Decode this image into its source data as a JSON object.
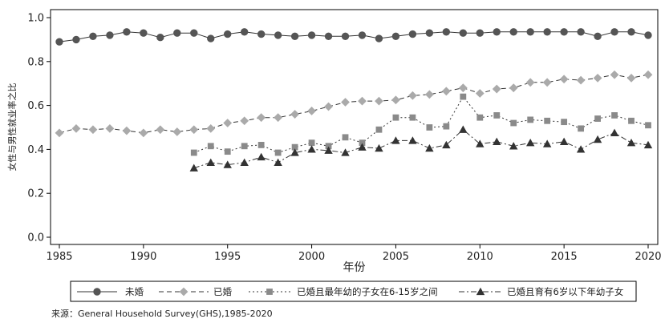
{
  "chart_data": {
    "type": "line",
    "title": "",
    "xlabel": "年份",
    "ylabel": "女性与男性就业率之比",
    "xlim": [
      1985,
      2020
    ],
    "ylim": [
      0,
      1
    ],
    "x_ticks": [
      1985,
      1990,
      1995,
      2000,
      2005,
      2010,
      2015,
      2020
    ],
    "y_ticks": [
      "0.0",
      "0.2",
      "0.4",
      "0.6",
      "0.8",
      "1.0"
    ],
    "grid": false,
    "legend_position": "bottom",
    "series": [
      {
        "name": "未婚",
        "color": "#555555",
        "marker": "circle",
        "line_style": "solid",
        "x": [
          1985,
          1986,
          1987,
          1988,
          1989,
          1990,
          1991,
          1992,
          1993,
          1994,
          1995,
          1996,
          1997,
          1998,
          1999,
          2000,
          2001,
          2002,
          2003,
          2004,
          2005,
          2006,
          2007,
          2008,
          2009,
          2010,
          2011,
          2012,
          2013,
          2014,
          2015,
          2016,
          2017,
          2018,
          2019,
          2020
        ],
        "y": [
          0.89,
          0.9,
          0.915,
          0.92,
          0.935,
          0.93,
          0.91,
          0.93,
          0.93,
          0.905,
          0.925,
          0.935,
          0.925,
          0.92,
          0.915,
          0.92,
          0.915,
          0.915,
          0.92,
          0.905,
          0.915,
          0.925,
          0.93,
          0.935,
          0.93,
          0.93,
          0.935,
          0.935,
          0.935,
          0.935,
          0.935,
          0.935,
          0.915,
          0.935,
          0.935,
          0.92
        ]
      },
      {
        "name": "已婚",
        "color": "#aaaaaa",
        "marker": "diamond",
        "line_style": "dashed",
        "x": [
          1985,
          1986,
          1987,
          1988,
          1989,
          1990,
          1991,
          1992,
          1993,
          1994,
          1995,
          1996,
          1997,
          1998,
          1999,
          2000,
          2001,
          2002,
          2003,
          2004,
          2005,
          2006,
          2007,
          2008,
          2009,
          2010,
          2011,
          2012,
          2013,
          2014,
          2015,
          2016,
          2017,
          2018,
          2019,
          2020
        ],
        "y": [
          0.475,
          0.495,
          0.49,
          0.495,
          0.485,
          0.475,
          0.49,
          0.48,
          0.49,
          0.495,
          0.52,
          0.53,
          0.545,
          0.545,
          0.56,
          0.575,
          0.595,
          0.615,
          0.62,
          0.62,
          0.625,
          0.645,
          0.65,
          0.665,
          0.68,
          0.655,
          0.675,
          0.68,
          0.705,
          0.705,
          0.72,
          0.715,
          0.725,
          0.74,
          0.725,
          0.74
        ]
      },
      {
        "name": "已婚且最年幼的子女在6-15岁之间",
        "color": "#8a8a8a",
        "marker": "square",
        "line_style": "dotted",
        "x": [
          1993,
          1994,
          1995,
          1996,
          1997,
          1998,
          1999,
          2000,
          2001,
          2002,
          2003,
          2004,
          2005,
          2006,
          2007,
          2008,
          2009,
          2010,
          2011,
          2012,
          2013,
          2014,
          2015,
          2016,
          2017,
          2018,
          2019,
          2020
        ],
        "y": [
          0.385,
          0.415,
          0.39,
          0.415,
          0.42,
          0.385,
          0.41,
          0.43,
          0.415,
          0.455,
          0.43,
          0.49,
          0.545,
          0.545,
          0.5,
          0.505,
          0.64,
          0.545,
          0.555,
          0.52,
          0.535,
          0.53,
          0.525,
          0.495,
          0.54,
          0.555,
          0.53,
          0.51
        ]
      },
      {
        "name": "已婚且育有6岁以下年幼子女",
        "color": "#333333",
        "marker": "triangle",
        "line_style": "dashdot",
        "x": [
          1993,
          1994,
          1995,
          1996,
          1997,
          1998,
          1999,
          2000,
          2001,
          2002,
          2003,
          2004,
          2005,
          2006,
          2007,
          2008,
          2009,
          2010,
          2011,
          2012,
          2013,
          2014,
          2015,
          2016,
          2017,
          2018,
          2019,
          2020
        ],
        "y": [
          0.315,
          0.34,
          0.33,
          0.34,
          0.365,
          0.34,
          0.385,
          0.4,
          0.395,
          0.385,
          0.41,
          0.405,
          0.44,
          0.44,
          0.405,
          0.42,
          0.49,
          0.425,
          0.435,
          0.415,
          0.43,
          0.425,
          0.435,
          0.4,
          0.445,
          0.475,
          0.43,
          0.42
        ]
      }
    ]
  },
  "source_note": "来源：General Household Survey(GHS),1985-2020"
}
